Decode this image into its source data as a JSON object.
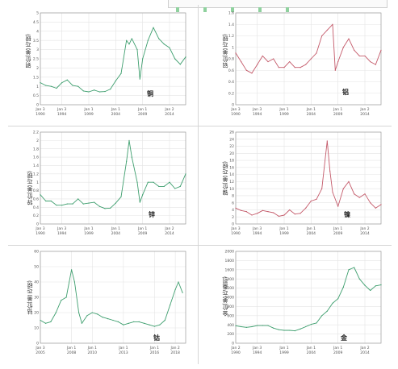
{
  "chart_data": [
    {
      "type": "line",
      "ylabel": "铜价(美元/磅)",
      "series_label": "铜",
      "color": "#3f9f6f",
      "ylim": [
        0,
        5.0
      ],
      "yticks": [
        0,
        0.5,
        1.0,
        1.5,
        2.0,
        2.5,
        3.0,
        3.5,
        4.0,
        4.5,
        5.0
      ],
      "xlim": [
        1990,
        2017
      ],
      "xticks": [
        {
          "x": 1990,
          "top": "Jan 3",
          "bottom": "1990"
        },
        {
          "x": 1994,
          "top": "Jan 3",
          "bottom": "1994"
        },
        {
          "x": 1999,
          "top": "Jan 1",
          "bottom": "1999"
        },
        {
          "x": 2004,
          "top": "Jan 1",
          "bottom": "2004"
        },
        {
          "x": 2009,
          "top": "Jan 1",
          "bottom": "2009"
        },
        {
          "x": 2014,
          "top": "Jan 2",
          "bottom": "2014"
        }
      ],
      "x": [
        1990,
        1991,
        1992,
        1993,
        1994,
        1995,
        1996,
        1997,
        1998,
        1999,
        2000,
        2001,
        2002,
        2003,
        2004,
        2005,
        2006,
        2006.5,
        2007,
        2008,
        2008.5,
        2009,
        2010,
        2011,
        2012,
        2013,
        2014,
        2015,
        2016,
        2017
      ],
      "values": [
        1.2,
        1.05,
        1.0,
        0.9,
        1.2,
        1.35,
        1.05,
        1.0,
        0.75,
        0.7,
        0.8,
        0.7,
        0.72,
        0.85,
        1.3,
        1.7,
        3.5,
        3.3,
        3.6,
        3.0,
        1.4,
        2.5,
        3.5,
        4.2,
        3.6,
        3.3,
        3.1,
        2.5,
        2.2,
        2.6
      ]
    },
    {
      "type": "line",
      "ylabel": "铝价(美元/磅)",
      "series_label": "铝",
      "color": "#c45a6a",
      "ylim": [
        0,
        1.6
      ],
      "yticks": [
        0,
        0.2,
        0.4,
        0.6,
        0.8,
        1.0,
        1.2,
        1.4,
        1.6
      ],
      "xlim": [
        1990,
        2017
      ],
      "xticks": [
        {
          "x": 1990,
          "top": "Jan 3",
          "bottom": "1990"
        },
        {
          "x": 1994,
          "top": "Jan 3",
          "bottom": "1994"
        },
        {
          "x": 1999,
          "top": "Jan 1",
          "bottom": "1999"
        },
        {
          "x": 2004,
          "top": "Jan 1",
          "bottom": "2004"
        },
        {
          "x": 2009,
          "top": "Jan 1",
          "bottom": "2009"
        },
        {
          "x": 2014,
          "top": "Jan 2",
          "bottom": "2014"
        }
      ],
      "x": [
        1990,
        1991,
        1992,
        1993,
        1994,
        1995,
        1996,
        1997,
        1998,
        1999,
        2000,
        2001,
        2002,
        2003,
        2004,
        2005,
        2006,
        2007,
        2008,
        2008.5,
        2009,
        2010,
        2011,
        2012,
        2013,
        2014,
        2015,
        2016,
        2017
      ],
      "values": [
        0.9,
        0.75,
        0.6,
        0.55,
        0.7,
        0.85,
        0.75,
        0.8,
        0.65,
        0.65,
        0.75,
        0.65,
        0.65,
        0.7,
        0.8,
        0.9,
        1.2,
        1.3,
        1.4,
        0.6,
        0.75,
        1.0,
        1.15,
        0.95,
        0.85,
        0.85,
        0.75,
        0.7,
        0.95
      ]
    },
    {
      "type": "line",
      "ylabel": "锌价(美元/磅)",
      "series_label": "锌",
      "color": "#3f9f6f",
      "ylim": [
        0,
        2.2
      ],
      "yticks": [
        0,
        0.2,
        0.4,
        0.6,
        0.8,
        1.0,
        1.2,
        1.4,
        1.6,
        1.8,
        2.0,
        2.2
      ],
      "xlim": [
        1990,
        2017
      ],
      "xticks": [
        {
          "x": 1990,
          "top": "Jan 3",
          "bottom": "1990"
        },
        {
          "x": 1994,
          "top": "Jan 3",
          "bottom": "1994"
        },
        {
          "x": 1999,
          "top": "Jan 1",
          "bottom": "1999"
        },
        {
          "x": 2004,
          "top": "Jan 1",
          "bottom": "2004"
        },
        {
          "x": 2009,
          "top": "Jan 1",
          "bottom": "2009"
        },
        {
          "x": 2014,
          "top": "Jan 2",
          "bottom": "2014"
        }
      ],
      "x": [
        1990,
        1991,
        1992,
        1993,
        1994,
        1995,
        1996,
        1997,
        1998,
        1999,
        2000,
        2001,
        2002,
        2003,
        2004,
        2005,
        2006,
        2006.5,
        2007,
        2008,
        2008.5,
        2009,
        2010,
        2011,
        2012,
        2013,
        2014,
        2015,
        2016,
        2017
      ],
      "values": [
        0.7,
        0.55,
        0.55,
        0.45,
        0.45,
        0.48,
        0.48,
        0.6,
        0.48,
        0.5,
        0.52,
        0.42,
        0.37,
        0.38,
        0.5,
        0.65,
        1.5,
        2.0,
        1.6,
        1.0,
        0.52,
        0.7,
        1.0,
        1.0,
        0.9,
        0.9,
        1.0,
        0.85,
        0.9,
        1.2
      ]
    },
    {
      "type": "line",
      "ylabel": "镍价(美元/磅)",
      "series_label": "镍",
      "color": "#c45a6a",
      "ylim": [
        0,
        26
      ],
      "yticks": [
        0,
        2,
        4,
        6,
        8,
        10,
        12,
        14,
        16,
        18,
        20,
        22,
        24,
        26
      ],
      "xlim": [
        1990,
        2017
      ],
      "xticks": [
        {
          "x": 1990,
          "top": "Jan 3",
          "bottom": "1990"
        },
        {
          "x": 1994,
          "top": "Jan 3",
          "bottom": "1994"
        },
        {
          "x": 1999,
          "top": "Jan 1",
          "bottom": "1999"
        },
        {
          "x": 2004,
          "top": "Jan 1",
          "bottom": "2004"
        },
        {
          "x": 2009,
          "top": "Jan 1",
          "bottom": "2009"
        },
        {
          "x": 2014,
          "top": "Jan 2",
          "bottom": "2014"
        }
      ],
      "x": [
        1990,
        1991,
        1992,
        1993,
        1994,
        1995,
        1996,
        1997,
        1998,
        1999,
        2000,
        2001,
        2002,
        2003,
        2004,
        2005,
        2006,
        2007,
        2007.5,
        2008,
        2009,
        2010,
        2011,
        2012,
        2013,
        2014,
        2015,
        2016,
        2017
      ],
      "values": [
        4.5,
        3.8,
        3.5,
        2.5,
        3.0,
        3.8,
        3.5,
        3.2,
        2.2,
        2.5,
        4.0,
        2.8,
        3.0,
        4.5,
        6.5,
        7.0,
        10.0,
        23.5,
        15.0,
        9.0,
        5.0,
        10.0,
        12.0,
        8.5,
        7.5,
        8.5,
        6.0,
        4.5,
        5.5
      ]
    },
    {
      "type": "line",
      "ylabel": "钴价(美元/磅)",
      "series_label": "钴",
      "color": "#3f9f6f",
      "ylim": [
        0,
        60
      ],
      "yticks": [
        0,
        10,
        20,
        30,
        40,
        50,
        60
      ],
      "xlim": [
        2005,
        2019
      ],
      "xticks": [
        {
          "x": 2005,
          "top": "Jan 3",
          "bottom": "2005"
        },
        {
          "x": 2008,
          "top": "Jan 1",
          "bottom": "2008"
        },
        {
          "x": 2010,
          "top": "Jan 1",
          "bottom": "2010"
        },
        {
          "x": 2013,
          "top": "Jan 1",
          "bottom": "2013"
        },
        {
          "x": 2016,
          "top": "Jan 1",
          "bottom": "2016"
        },
        {
          "x": 2018,
          "top": "Jan 2",
          "bottom": "2018"
        }
      ],
      "x": [
        2005,
        2005.5,
        2006,
        2006.5,
        2007,
        2007.5,
        2008,
        2008.3,
        2008.7,
        2009,
        2009.5,
        2010,
        2010.5,
        2011,
        2011.5,
        2012,
        2012.5,
        2013,
        2013.5,
        2014,
        2014.5,
        2015,
        2015.5,
        2016,
        2016.5,
        2017,
        2017.5,
        2018,
        2018.3,
        2018.7
      ],
      "values": [
        15,
        13,
        14,
        20,
        28,
        30,
        48,
        40,
        20,
        13,
        18,
        20,
        19,
        17,
        16,
        15,
        14,
        12,
        13,
        14,
        14,
        13,
        12,
        11,
        12,
        15,
        25,
        35,
        40,
        33
      ]
    },
    {
      "type": "line",
      "ylabel": "金价(美元/盎司)",
      "series_label": "金",
      "color": "#3f9f6f",
      "ylim": [
        0,
        2000
      ],
      "yticks": [
        0,
        200,
        400,
        600,
        800,
        1000,
        1200,
        1400,
        1600,
        1800,
        2000
      ],
      "xlim": [
        1990,
        2017
      ],
      "xticks": [
        {
          "x": 1990,
          "top": "Jan 2",
          "bottom": "1990"
        },
        {
          "x": 1994,
          "top": "Jan 3",
          "bottom": "1994"
        },
        {
          "x": 1999,
          "top": "Jan 1",
          "bottom": "1999"
        },
        {
          "x": 2004,
          "top": "Jan 1",
          "bottom": "2004"
        },
        {
          "x": 2009,
          "top": "Jan 1",
          "bottom": "2009"
        },
        {
          "x": 2014,
          "top": "Jan 2",
          "bottom": "2014"
        }
      ],
      "x": [
        1990,
        1991,
        1992,
        1993,
        1994,
        1995,
        1996,
        1997,
        1998,
        1999,
        2000,
        2001,
        2002,
        2003,
        2004,
        2005,
        2006,
        2007,
        2008,
        2009,
        2010,
        2011,
        2012,
        2013,
        2014,
        2015,
        2016,
        2017
      ],
      "values": [
        380,
        360,
        345,
        360,
        385,
        385,
        385,
        330,
        295,
        280,
        280,
        270,
        310,
        360,
        410,
        440,
        600,
        700,
        870,
        970,
        1220,
        1600,
        1650,
        1400,
        1260,
        1150,
        1250,
        1270
      ]
    }
  ]
}
